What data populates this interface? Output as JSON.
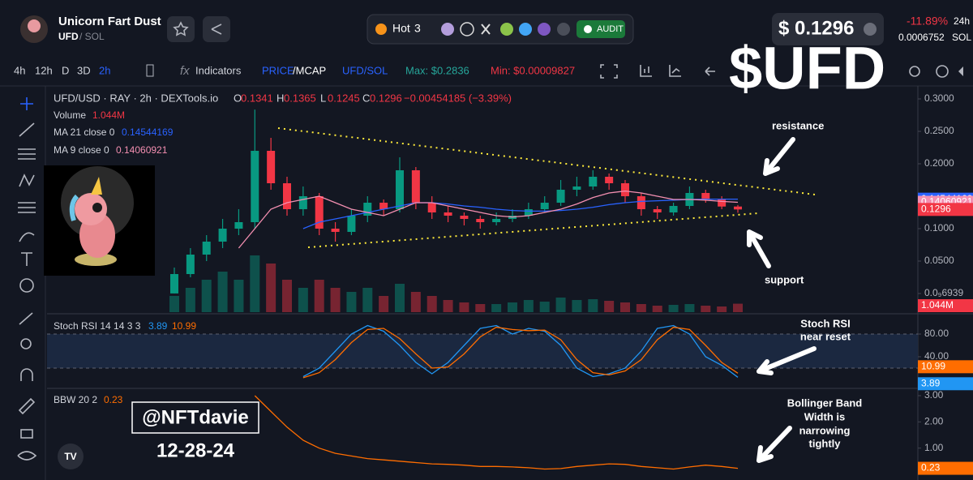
{
  "header": {
    "name": "Unicorn Fart Dust",
    "symbol": "UFD",
    "pair": "/ SOL",
    "hot_label": "Hot",
    "hot_count": "3",
    "audit": "AUDIT",
    "price": "$ 0.1296",
    "change": "-11.89%",
    "period": "24h",
    "price_sol": "0.0006752",
    "sol": "SOL"
  },
  "toolbar": {
    "intervals": [
      "4h",
      "12h",
      "D",
      "3D",
      "2h"
    ],
    "active_interval": 4,
    "indicators": "Indicators",
    "price": "PRICE",
    "mcap": "/MCAP",
    "pair_switch": "UFD/SOL",
    "max": "Max: $0.2836",
    "min": "Min: $0.00009827"
  },
  "overlay_title": "$UFD",
  "chart_data": [
    {
      "type": "candlestick",
      "title": "UFD/USD · RAY · 2h · DEXTools.io",
      "ohlc_labels": [
        "O",
        "H",
        "L",
        "C"
      ],
      "ohlc_values": [
        "0.1341",
        "0.1365",
        "0.1245",
        "0.1296"
      ],
      "change": "−0.00454185 (−3.39%)",
      "volume_label": "Volume",
      "volume_value": "1.044M",
      "up_color": "#089981",
      "down_color": "#f23645",
      "ohlc": [
        [
          0.0001,
          0.04,
          0.0001,
          0.03
        ],
        [
          0.03,
          0.07,
          0.025,
          0.06
        ],
        [
          0.06,
          0.09,
          0.05,
          0.08
        ],
        [
          0.08,
          0.115,
          0.07,
          0.1
        ],
        [
          0.1,
          0.13,
          0.09,
          0.11
        ],
        [
          0.11,
          0.2836,
          0.1,
          0.22
        ],
        [
          0.22,
          0.24,
          0.16,
          0.17
        ],
        [
          0.17,
          0.18,
          0.12,
          0.13
        ],
        [
          0.13,
          0.165,
          0.12,
          0.15
        ],
        [
          0.15,
          0.155,
          0.09,
          0.1
        ],
        [
          0.1,
          0.11,
          0.08,
          0.095
        ],
        [
          0.095,
          0.13,
          0.09,
          0.12
        ],
        [
          0.12,
          0.15,
          0.11,
          0.14
        ],
        [
          0.14,
          0.145,
          0.12,
          0.13
        ],
        [
          0.13,
          0.21,
          0.125,
          0.19
        ],
        [
          0.19,
          0.195,
          0.13,
          0.14
        ],
        [
          0.14,
          0.15,
          0.115,
          0.125
        ],
        [
          0.125,
          0.135,
          0.11,
          0.12
        ],
        [
          0.12,
          0.125,
          0.105,
          0.115
        ],
        [
          0.115,
          0.12,
          0.1,
          0.11
        ],
        [
          0.11,
          0.125,
          0.105,
          0.115
        ],
        [
          0.115,
          0.13,
          0.11,
          0.12
        ],
        [
          0.12,
          0.14,
          0.115,
          0.13
        ],
        [
          0.13,
          0.15,
          0.125,
          0.14
        ],
        [
          0.14,
          0.175,
          0.135,
          0.16
        ],
        [
          0.16,
          0.18,
          0.15,
          0.165
        ],
        [
          0.165,
          0.19,
          0.16,
          0.18
        ],
        [
          0.18,
          0.185,
          0.16,
          0.17
        ],
        [
          0.17,
          0.175,
          0.14,
          0.15
        ],
        [
          0.15,
          0.155,
          0.12,
          0.13
        ],
        [
          0.13,
          0.135,
          0.115,
          0.125
        ],
        [
          0.125,
          0.14,
          0.12,
          0.135
        ],
        [
          0.135,
          0.165,
          0.13,
          0.155
        ],
        [
          0.155,
          0.16,
          0.14,
          0.145
        ],
        [
          0.145,
          0.15,
          0.13,
          0.1341
        ],
        [
          0.1341,
          0.1365,
          0.1245,
          0.1296
        ]
      ],
      "volume": [
        2,
        3,
        4,
        5,
        4,
        7,
        6,
        4,
        3,
        4,
        3,
        2.5,
        3,
        2,
        3.5,
        2.5,
        2,
        1.5,
        1.2,
        1,
        1,
        1.2,
        1.5,
        1.3,
        1.8,
        1.5,
        1.6,
        1.4,
        1.2,
        1,
        0.8,
        0.9,
        1,
        0.8,
        0.7,
        1.044
      ],
      "volume_lim": [
        0,
        8
      ],
      "series": [
        {
          "name": "MA 21 close 0",
          "value_label": "0.14544169",
          "color": "#2962ff",
          "values": [
            null,
            null,
            null,
            null,
            null,
            null,
            null,
            null,
            0.1,
            0.11,
            0.115,
            0.12,
            0.125,
            0.13,
            0.135,
            0.14,
            0.14,
            0.138,
            0.135,
            0.133,
            0.13,
            0.128,
            0.127,
            0.127,
            0.128,
            0.13,
            0.133,
            0.137,
            0.14,
            0.142,
            0.143,
            0.144,
            0.145,
            0.1455,
            0.1455,
            0.14544169
          ]
        },
        {
          "name": "MA 9 close 0",
          "value_label": "0.14060921",
          "color": "#f48fb1",
          "values": [
            null,
            null,
            null,
            null,
            0.07,
            0.1,
            0.13,
            0.14,
            0.145,
            0.15,
            0.14,
            0.13,
            0.125,
            0.12,
            0.13,
            0.14,
            0.14,
            0.135,
            0.13,
            0.125,
            0.12,
            0.118,
            0.12,
            0.125,
            0.13,
            0.138,
            0.148,
            0.155,
            0.158,
            0.155,
            0.15,
            0.145,
            0.145,
            0.144,
            0.142,
            0.14060921
          ]
        }
      ],
      "ylim": [
        0,
        0.3
      ],
      "yticks": [
        {
          "value": 0.3,
          "label": "0.3000"
        },
        {
          "value": 0.25,
          "label": "0.2500"
        },
        {
          "value": 0.2,
          "label": "0.2000"
        },
        {
          "value": 0.1,
          "label": "0.1000"
        },
        {
          "value": 0.05,
          "label": "0.0500"
        },
        {
          "value": 6.939e-10,
          "label": "0.0₉6939"
        }
      ]
    },
    {
      "type": "line",
      "title": "Stoch RSI 14 14 3 3",
      "band": [
        20,
        80
      ],
      "series": [
        {
          "name": "K",
          "value_label": "3.89",
          "color": "#2196f3",
          "values": [
            null,
            null,
            null,
            null,
            null,
            null,
            null,
            null,
            5,
            20,
            50,
            80,
            95,
            85,
            60,
            30,
            10,
            30,
            60,
            90,
            95,
            80,
            90,
            85,
            60,
            20,
            5,
            10,
            20,
            50,
            90,
            95,
            80,
            40,
            25,
            3.89
          ]
        },
        {
          "name": "D",
          "value_label": "10.99",
          "color": "#ff6d00",
          "values": [
            null,
            null,
            null,
            null,
            null,
            null,
            null,
            null,
            3,
            12,
            35,
            65,
            88,
            90,
            72,
            45,
            20,
            22,
            45,
            75,
            92,
            88,
            86,
            87,
            70,
            35,
            12,
            8,
            15,
            35,
            70,
            92,
            88,
            60,
            30,
            10.99
          ]
        }
      ],
      "ylim": [
        0,
        100
      ],
      "yticks": [
        {
          "value": 80,
          "label": "80.00"
        },
        {
          "value": 40,
          "label": "40.00"
        }
      ]
    },
    {
      "type": "line",
      "title": "BBW 20 2",
      "series": [
        {
          "name": "BBW",
          "value_label": "0.23",
          "color": "#ff6d00",
          "values": [
            null,
            null,
            null,
            null,
            null,
            3.0,
            2.4,
            1.8,
            1.3,
            1.0,
            0.8,
            0.7,
            0.6,
            0.55,
            0.5,
            0.45,
            0.4,
            0.38,
            0.35,
            0.3,
            0.3,
            0.28,
            0.25,
            0.2,
            0.22,
            0.3,
            0.35,
            0.4,
            0.38,
            0.3,
            0.25,
            0.2,
            0.28,
            0.35,
            0.3,
            0.23
          ]
        }
      ],
      "ylim": [
        0,
        3
      ],
      "yticks": [
        {
          "value": 3,
          "label": "3.00"
        },
        {
          "value": 2,
          "label": "2.00"
        },
        {
          "value": 1,
          "label": "1.00"
        }
      ]
    }
  ],
  "annotations": {
    "resistance": "resistance",
    "support": "support",
    "stoch": [
      "Stoch RSI",
      "near reset"
    ],
    "bbw": [
      "Bollinger Band",
      "Width is",
      "narrowing",
      "tightly"
    ],
    "handle": "@NFTdavie",
    "date": "12-28-24"
  }
}
